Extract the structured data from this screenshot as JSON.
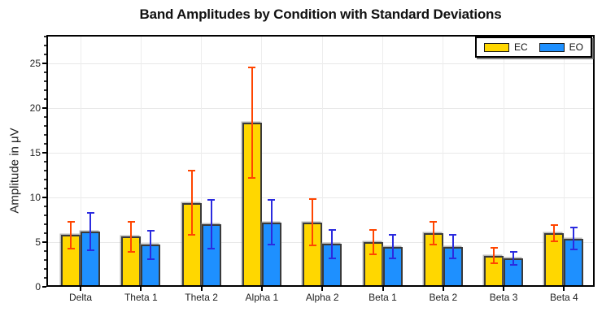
{
  "page": {
    "background": "#ffffff"
  },
  "chart_data": {
    "type": "bar",
    "title": "Band Amplitudes by Condition with Standard Deviations",
    "xlabel": "",
    "ylabel": "Amplitude in μV",
    "categories": [
      "Delta",
      "Theta 1",
      "Theta 2",
      "Alpha 1",
      "Alpha 2",
      "Beta 1",
      "Beta 2",
      "Beta 3",
      "Beta 4"
    ],
    "series": [
      {
        "name": "EC",
        "color": "#FFD700",
        "edge_color": "#3a3a3a",
        "error_color": "#FF4500",
        "values": [
          5.8,
          5.6,
          9.4,
          18.4,
          7.2,
          5.0,
          6.0,
          3.5,
          6.0
        ],
        "std_devs": [
          1.5,
          1.7,
          3.6,
          6.2,
          2.6,
          1.4,
          1.3,
          0.9,
          0.9
        ]
      },
      {
        "name": "EO",
        "color": "#1E90FF",
        "edge_color": "#3a3a3a",
        "error_color": "#2B2BDF",
        "values": [
          6.2,
          4.7,
          7.0,
          7.2,
          4.8,
          4.5,
          4.5,
          3.2,
          5.4
        ],
        "std_devs": [
          2.1,
          1.6,
          2.7,
          2.5,
          1.6,
          1.3,
          1.3,
          0.7,
          1.2
        ]
      }
    ],
    "yticks": [
      0,
      5,
      10,
      15,
      20,
      25
    ],
    "ylim": [
      0,
      28.2
    ],
    "grid": true,
    "grid_color": "#e8e8e8",
    "axis_color": "#000000",
    "legend": {
      "labels": [
        "EC",
        "EO"
      ],
      "position": "top-right",
      "shadow": true
    }
  }
}
